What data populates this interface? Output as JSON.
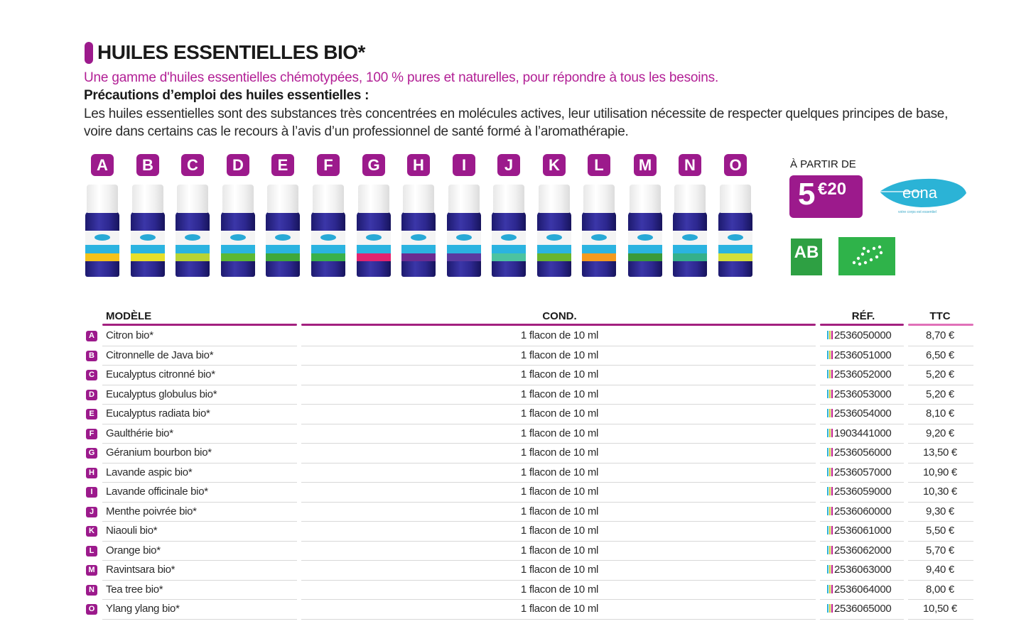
{
  "header": {
    "title": "HUILES ESSENTIELLES BIO*",
    "subtitle": "Une gamme d'huiles essentielles chémotypées, 100 % pures et naturelles, pour répondre à tous les besoins.",
    "precautions_title": "Précautions d’emploi des huiles essentielles :",
    "precautions_text": "Les huiles essentielles sont des substances très concentrées en molécules actives, leur utilisation nécessite de respecter quelques principes de base, voire dans certains cas le recours à l’avis d’un professionnel de santé formé à l’aromathérapie."
  },
  "colors": {
    "accent": "#9c1a8c",
    "subtitle": "#b21f95",
    "header_line": "#a3207f",
    "ttc_line": "#e070b8",
    "bottle_glass": "#2d2890",
    "label_blue": "#2bb3e0",
    "bio_green": "#2fb34a",
    "eona_blue": "#2bb3d6"
  },
  "bottles": [
    {
      "letter": "A",
      "label_color": "#f3c21b"
    },
    {
      "letter": "B",
      "label_color": "#e7df2a"
    },
    {
      "letter": "C",
      "label_color": "#b8d334"
    },
    {
      "letter": "D",
      "label_color": "#5cb833"
    },
    {
      "letter": "E",
      "label_color": "#3fa83a"
    },
    {
      "letter": "F",
      "label_color": "#39b14a"
    },
    {
      "letter": "G",
      "label_color": "#e2236f"
    },
    {
      "letter": "H",
      "label_color": "#6a2c91"
    },
    {
      "letter": "I",
      "label_color": "#5a3aa0"
    },
    {
      "letter": "J",
      "label_color": "#4cc3a0"
    },
    {
      "letter": "K",
      "label_color": "#68b52e"
    },
    {
      "letter": "L",
      "label_color": "#f39a1e"
    },
    {
      "letter": "M",
      "label_color": "#3a9a3a"
    },
    {
      "letter": "N",
      "label_color": "#35b08a"
    },
    {
      "letter": "O",
      "label_color": "#d3df3a"
    }
  ],
  "promo": {
    "from_label": "À PARTIR DE",
    "price_int": "5",
    "price_dec": "€20",
    "brand": "eona",
    "brand_tagline": "votre corps est essentiel",
    "ab_logo": "AB"
  },
  "table": {
    "headers": {
      "model": "MODÈLE",
      "cond": "COND.",
      "ref": "RÉF.",
      "ttc": "TTC"
    },
    "rows": [
      {
        "letter": "A",
        "model": "Citron bio*",
        "cond": "1 flacon de 10 ml",
        "ref": "2536050000",
        "ttc": "8,70 €"
      },
      {
        "letter": "B",
        "model": "Citronnelle de Java bio*",
        "cond": "1 flacon de 10 ml",
        "ref": "2536051000",
        "ttc": "6,50 €"
      },
      {
        "letter": "C",
        "model": "Eucalyptus citronné bio*",
        "cond": "1 flacon de 10 ml",
        "ref": "2536052000",
        "ttc": "5,20 €"
      },
      {
        "letter": "D",
        "model": "Eucalyptus globulus bio*",
        "cond": "1 flacon de 10 ml",
        "ref": "2536053000",
        "ttc": "5,20 €"
      },
      {
        "letter": "E",
        "model": "Eucalyptus radiata bio*",
        "cond": "1 flacon de 10 ml",
        "ref": "2536054000",
        "ttc": "8,10 €"
      },
      {
        "letter": "F",
        "model": "Gaulthérie bio*",
        "cond": "1 flacon de 10 ml",
        "ref": "1903441000",
        "ttc": "9,20 €"
      },
      {
        "letter": "G",
        "model": "Géranium bourbon bio*",
        "cond": "1 flacon de 10 ml",
        "ref": "2536056000",
        "ttc": "13,50 €"
      },
      {
        "letter": "H",
        "model": "Lavande aspic bio*",
        "cond": "1 flacon de 10 ml",
        "ref": "2536057000",
        "ttc": "10,90 €"
      },
      {
        "letter": "I",
        "model": "Lavande officinale bio*",
        "cond": "1 flacon de 10 ml",
        "ref": "2536059000",
        "ttc": "10,30 €"
      },
      {
        "letter": "J",
        "model": "Menthe poivrée bio*",
        "cond": "1 flacon de 10 ml",
        "ref": "2536060000",
        "ttc": "9,30 €"
      },
      {
        "letter": "K",
        "model": "Niaouli bio*",
        "cond": "1 flacon de 10 ml",
        "ref": "2536061000",
        "ttc": "5,50 €"
      },
      {
        "letter": "L",
        "model": "Orange bio*",
        "cond": "1 flacon de 10 ml",
        "ref": "2536062000",
        "ttc": "5,70 €"
      },
      {
        "letter": "M",
        "model": "Ravintsara bio*",
        "cond": "1 flacon de 10 ml",
        "ref": "2536063000",
        "ttc": "9,40 €"
      },
      {
        "letter": "N",
        "model": "Tea tree bio*",
        "cond": "1 flacon de 10 ml",
        "ref": "2536064000",
        "ttc": "8,00 €"
      },
      {
        "letter": "O",
        "model": "Ylang ylang bio*",
        "cond": "1 flacon de 10 ml",
        "ref": "2536065000",
        "ttc": "10,50 €"
      }
    ]
  }
}
